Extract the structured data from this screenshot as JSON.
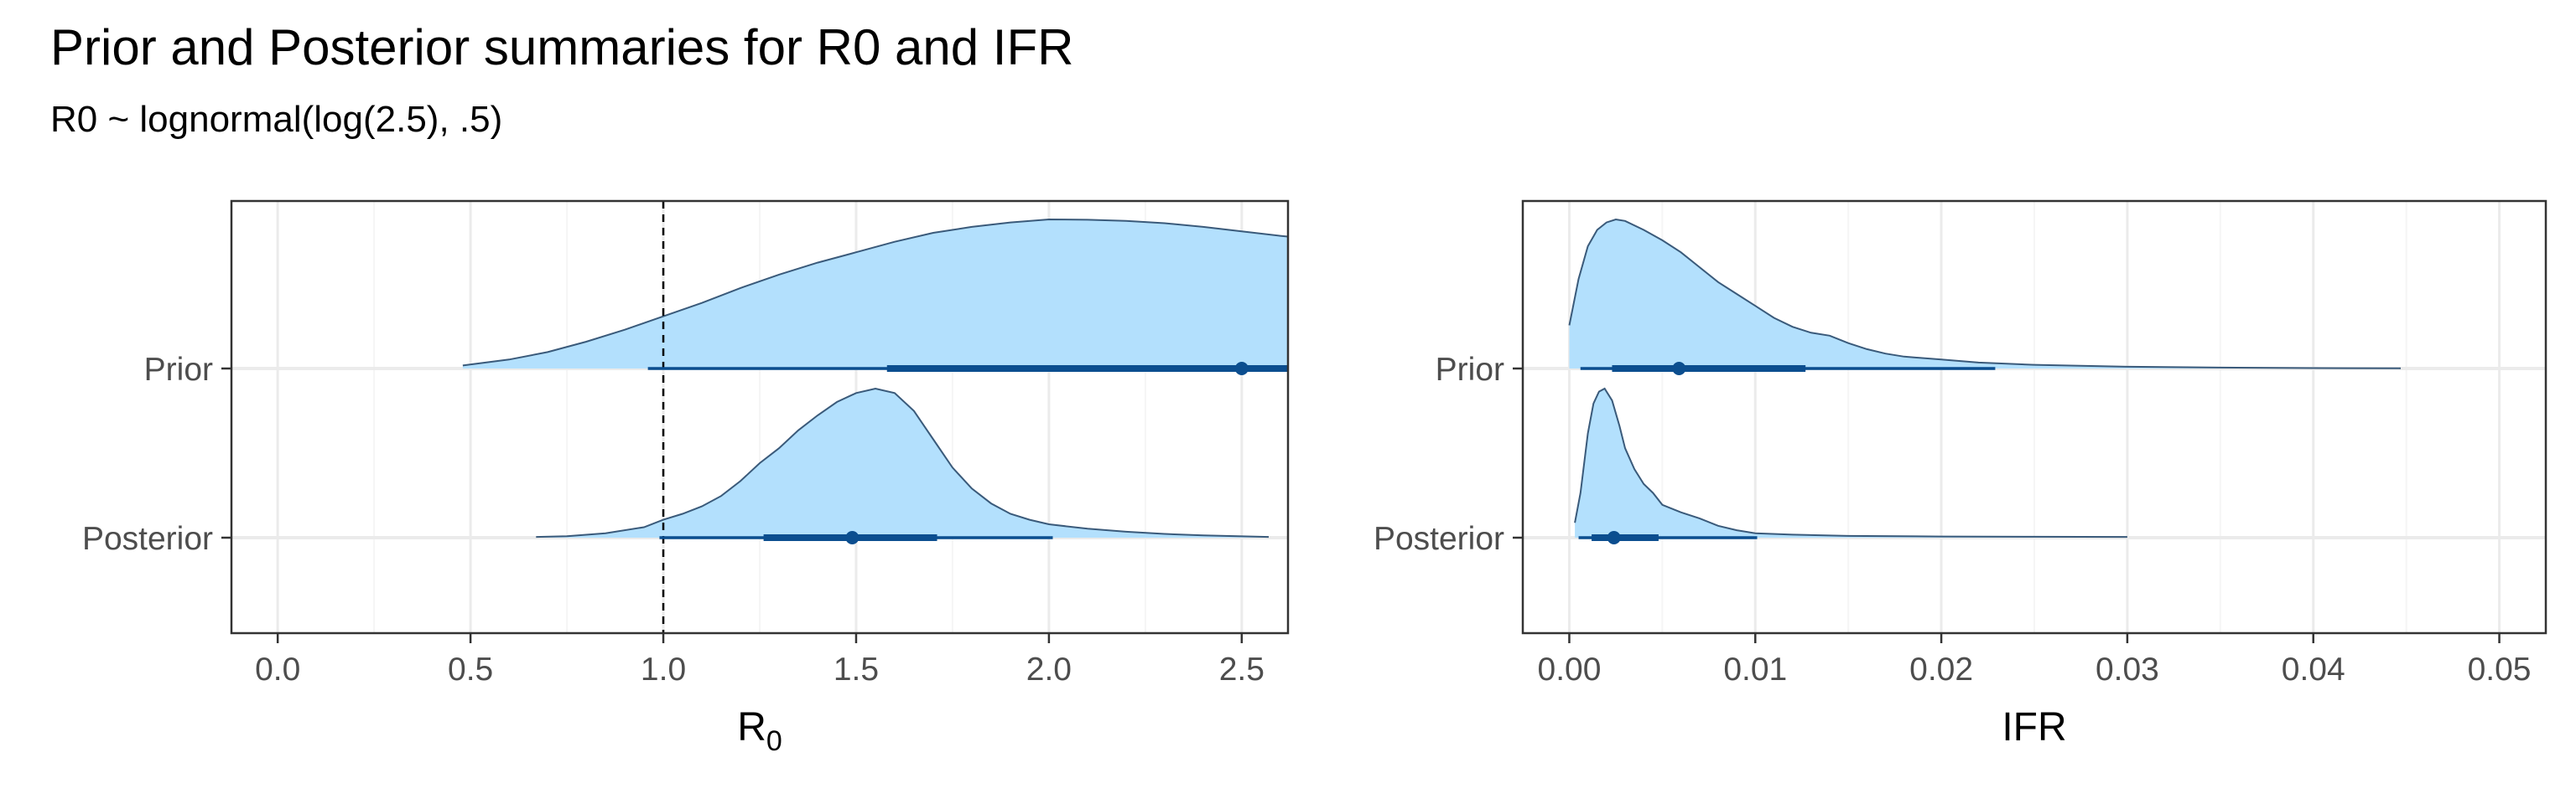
{
  "title": "Prior and Posterior summaries for R0 and IFR",
  "subtitle": "R0 ~ lognormal(log(2.5), .5)",
  "colors": {
    "density_fill": "#b3e0fd",
    "density_line": "#3a5a7a",
    "interval": "#0b4e8f",
    "grid_major": "#ebebeb",
    "grid_minor": "#f5f5f5",
    "panel_border": "#333333"
  },
  "chart_data": [
    {
      "type": "area",
      "subtype": "halfeye",
      "xlabel": "R",
      "xlabel_subscript": "0",
      "xlim": [
        -0.12,
        2.62
      ],
      "xticks": [
        0.0,
        0.5,
        1.0,
        1.5,
        2.0,
        2.5
      ],
      "xtick_labels": [
        "0.0",
        "0.5",
        "1.0",
        "1.5",
        "2.0",
        "2.5"
      ],
      "reference_line": 1.0,
      "categories": [
        "Prior",
        "Posterior"
      ],
      "series": [
        {
          "name": "Prior",
          "density": [
            [
              0.48,
              0.02
            ],
            [
              0.6,
              0.06
            ],
            [
              0.7,
              0.11
            ],
            [
              0.8,
              0.18
            ],
            [
              0.9,
              0.26
            ],
            [
              1.0,
              0.35
            ],
            [
              1.1,
              0.44
            ],
            [
              1.2,
              0.54
            ],
            [
              1.3,
              0.63
            ],
            [
              1.4,
              0.71
            ],
            [
              1.5,
              0.78
            ],
            [
              1.6,
              0.85
            ],
            [
              1.7,
              0.91
            ],
            [
              1.8,
              0.95
            ],
            [
              1.9,
              0.98
            ],
            [
              2.0,
              1.0
            ],
            [
              2.1,
              0.998
            ],
            [
              2.2,
              0.99
            ],
            [
              2.3,
              0.975
            ],
            [
              2.4,
              0.95
            ],
            [
              2.5,
              0.92
            ],
            [
              2.6,
              0.89
            ],
            [
              2.62,
              0.885
            ]
          ],
          "point": 2.5,
          "interval_66": [
            1.58,
            2.62
          ],
          "interval_95": [
            0.96,
            2.62
          ]
        },
        {
          "name": "Posterior",
          "density": [
            [
              0.67,
              0.005
            ],
            [
              0.75,
              0.01
            ],
            [
              0.85,
              0.03
            ],
            [
              0.95,
              0.07
            ],
            [
              1.0,
              0.12
            ],
            [
              1.05,
              0.16
            ],
            [
              1.1,
              0.21
            ],
            [
              1.15,
              0.28
            ],
            [
              1.2,
              0.38
            ],
            [
              1.25,
              0.5
            ],
            [
              1.3,
              0.6
            ],
            [
              1.35,
              0.72
            ],
            [
              1.4,
              0.82
            ],
            [
              1.45,
              0.91
            ],
            [
              1.5,
              0.97
            ],
            [
              1.55,
              1.0
            ],
            [
              1.6,
              0.97
            ],
            [
              1.65,
              0.85
            ],
            [
              1.7,
              0.66
            ],
            [
              1.75,
              0.47
            ],
            [
              1.8,
              0.33
            ],
            [
              1.85,
              0.23
            ],
            [
              1.9,
              0.16
            ],
            [
              1.95,
              0.12
            ],
            [
              2.0,
              0.09
            ],
            [
              2.1,
              0.06
            ],
            [
              2.2,
              0.04
            ],
            [
              2.3,
              0.025
            ],
            [
              2.4,
              0.015
            ],
            [
              2.57,
              0.005
            ]
          ],
          "point": 1.49,
          "interval_66": [
            1.26,
            1.71
          ],
          "interval_95": [
            0.99,
            2.01
          ]
        }
      ]
    },
    {
      "type": "area",
      "subtype": "halfeye",
      "xlabel": "IFR",
      "xlim": [
        -0.0025,
        0.0525
      ],
      "xticks": [
        0.0,
        0.01,
        0.02,
        0.03,
        0.04,
        0.05
      ],
      "xtick_labels": [
        "0.00",
        "0.01",
        "0.02",
        "0.03",
        "0.04",
        "0.05"
      ],
      "categories": [
        "Prior",
        "Posterior"
      ],
      "series": [
        {
          "name": "Prior",
          "density": [
            [
              0.0,
              0.29
            ],
            [
              0.0005,
              0.6
            ],
            [
              0.001,
              0.82
            ],
            [
              0.0015,
              0.93
            ],
            [
              0.002,
              0.98
            ],
            [
              0.0025,
              1.0
            ],
            [
              0.003,
              0.99
            ],
            [
              0.004,
              0.93
            ],
            [
              0.005,
              0.86
            ],
            [
              0.006,
              0.78
            ],
            [
              0.007,
              0.68
            ],
            [
              0.008,
              0.58
            ],
            [
              0.009,
              0.5
            ],
            [
              0.01,
              0.42
            ],
            [
              0.011,
              0.34
            ],
            [
              0.012,
              0.28
            ],
            [
              0.013,
              0.24
            ],
            [
              0.014,
              0.22
            ],
            [
              0.015,
              0.17
            ],
            [
              0.016,
              0.13
            ],
            [
              0.017,
              0.1
            ],
            [
              0.018,
              0.08
            ],
            [
              0.02,
              0.06
            ],
            [
              0.022,
              0.04
            ],
            [
              0.025,
              0.025
            ],
            [
              0.03,
              0.012
            ],
            [
              0.035,
              0.006
            ],
            [
              0.04,
              0.003
            ],
            [
              0.0447,
              0.001
            ]
          ],
          "point": 0.0059,
          "interval_66": [
            0.0023,
            0.0127
          ],
          "interval_95": [
            0.0006,
            0.0229
          ]
        },
        {
          "name": "Posterior",
          "density": [
            [
              0.0003,
              0.1
            ],
            [
              0.0006,
              0.3
            ],
            [
              0.001,
              0.7
            ],
            [
              0.0013,
              0.9
            ],
            [
              0.0016,
              0.98
            ],
            [
              0.0019,
              1.0
            ],
            [
              0.0023,
              0.92
            ],
            [
              0.0027,
              0.75
            ],
            [
              0.003,
              0.6
            ],
            [
              0.0035,
              0.46
            ],
            [
              0.004,
              0.36
            ],
            [
              0.0045,
              0.3
            ],
            [
              0.005,
              0.22
            ],
            [
              0.006,
              0.17
            ],
            [
              0.007,
              0.13
            ],
            [
              0.008,
              0.08
            ],
            [
              0.009,
              0.05
            ],
            [
              0.01,
              0.03
            ],
            [
              0.012,
              0.02
            ],
            [
              0.015,
              0.012
            ],
            [
              0.02,
              0.008
            ],
            [
              0.025,
              0.006
            ],
            [
              0.03,
              0.005
            ]
          ],
          "point": 0.0024,
          "interval_66": [
            0.0012,
            0.0048
          ],
          "interval_95": [
            0.0005,
            0.0101
          ]
        }
      ]
    }
  ]
}
